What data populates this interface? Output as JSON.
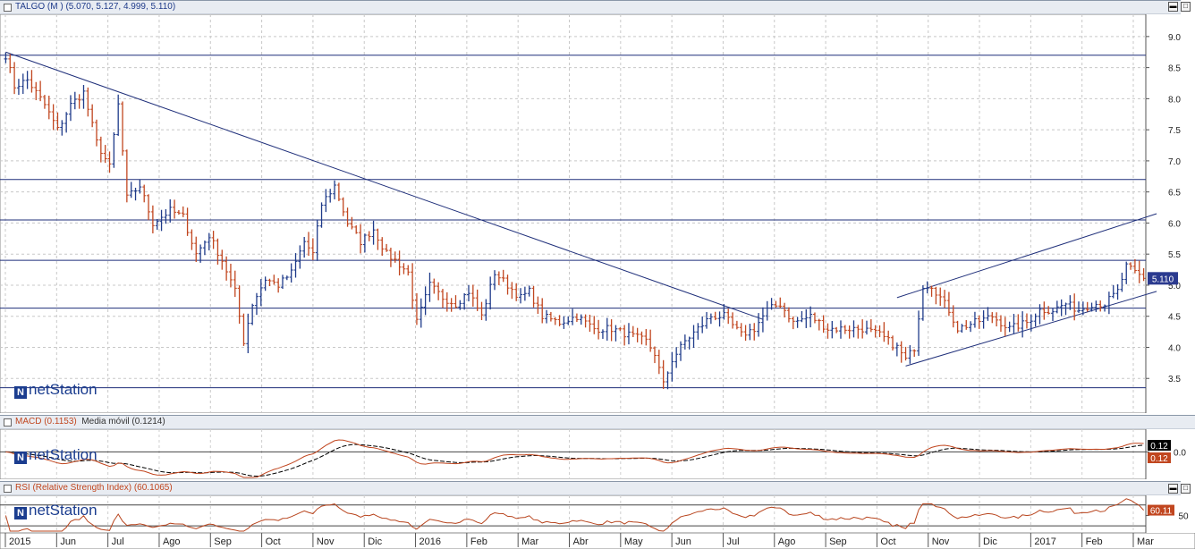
{
  "price_panel": {
    "header": "TALGO (M ) (5.070, 5.127, 4.999, 5.110)",
    "last_label": "5.110",
    "logo": "netStation"
  },
  "macd_panel": {
    "header_main": "MACD (0.1153)",
    "header_ma": "Media móvil (0.1214)",
    "label_macd": "0.12",
    "label_ma": "0.12",
    "logo": "netStation"
  },
  "rsi_panel": {
    "header": "RSI (Relative Strength Index) (60.1065)",
    "label": "60.11",
    "logo": "netStation"
  },
  "colors": {
    "up": "#1f3b8a",
    "down": "#c1461f",
    "line": "#1f2f7a",
    "macd": "#000000",
    "signal": "#c1461f",
    "rsi": "#b8441d"
  },
  "chart_data": [
    {
      "type": "ohlc",
      "series_name": "TALGO",
      "ylim": [
        3.0,
        9.3
      ],
      "y_ticks": [
        "3.5",
        "4.0",
        "4.5",
        "5.0",
        "5.5",
        "6.0",
        "6.5",
        "7.0",
        "7.5",
        "8.0",
        "8.5",
        "9.0"
      ],
      "x_ticks": [
        "2015",
        "Jun",
        "Jul",
        "Ago",
        "Sep",
        "Oct",
        "Nov",
        "Dic",
        "2016",
        "Feb",
        "Mar",
        "Abr",
        "May",
        "Jun",
        "Jul",
        "Ago",
        "Sep",
        "Oct",
        "Nov",
        "Dic",
        "2017",
        "Feb",
        "Mar"
      ],
      "close_path": [
        [
          0,
          8.7
        ],
        [
          2,
          8.2
        ],
        [
          5,
          8.3
        ],
        [
          9,
          7.9
        ],
        [
          12,
          7.5
        ],
        [
          15,
          7.9
        ],
        [
          18,
          8.1
        ],
        [
          21,
          7.3
        ],
        [
          24,
          6.9
        ],
        [
          26,
          7.9
        ],
        [
          28,
          6.4
        ],
        [
          31,
          6.6
        ],
        [
          34,
          6.0
        ],
        [
          38,
          6.2
        ],
        [
          41,
          6.1
        ],
        [
          44,
          5.5
        ],
        [
          47,
          5.8
        ],
        [
          50,
          5.4
        ],
        [
          53,
          4.9
        ],
        [
          55,
          4.1
        ],
        [
          57,
          4.7
        ],
        [
          60,
          5.1
        ],
        [
          63,
          5.0
        ],
        [
          66,
          5.2
        ],
        [
          69,
          5.7
        ],
        [
          71,
          5.5
        ],
        [
          73,
          6.3
        ],
        [
          76,
          6.6
        ],
        [
          79,
          6.0
        ],
        [
          82,
          5.7
        ],
        [
          85,
          5.9
        ],
        [
          88,
          5.5
        ],
        [
          90,
          5.4
        ],
        [
          93,
          5.2
        ],
        [
          95,
          4.4
        ],
        [
          98,
          5.0
        ],
        [
          101,
          4.8
        ],
        [
          104,
          4.7
        ],
        [
          107,
          4.9
        ],
        [
          110,
          4.5
        ],
        [
          113,
          5.2
        ],
        [
          116,
          5.0
        ],
        [
          119,
          4.8
        ],
        [
          121,
          4.9
        ],
        [
          124,
          4.5
        ],
        [
          128,
          4.4
        ],
        [
          132,
          4.5
        ],
        [
          136,
          4.3
        ],
        [
          140,
          4.3
        ],
        [
          144,
          4.2
        ],
        [
          148,
          4.1
        ],
        [
          150,
          3.9
        ],
        [
          152,
          3.4
        ],
        [
          154,
          3.8
        ],
        [
          157,
          4.1
        ],
        [
          160,
          4.3
        ],
        [
          163,
          4.5
        ],
        [
          166,
          4.5
        ],
        [
          170,
          4.2
        ],
        [
          173,
          4.3
        ],
        [
          176,
          4.6
        ],
        [
          179,
          4.7
        ],
        [
          182,
          4.4
        ],
        [
          186,
          4.5
        ],
        [
          190,
          4.3
        ],
        [
          194,
          4.3
        ],
        [
          198,
          4.3
        ],
        [
          202,
          4.2
        ],
        [
          206,
          4.0
        ],
        [
          208,
          3.8
        ],
        [
          210,
          4.0
        ],
        [
          212,
          5.0
        ],
        [
          214,
          5.0
        ],
        [
          216,
          4.8
        ],
        [
          218,
          4.6
        ],
        [
          220,
          4.3
        ],
        [
          224,
          4.4
        ],
        [
          228,
          4.5
        ],
        [
          232,
          4.3
        ],
        [
          236,
          4.4
        ],
        [
          239,
          4.6
        ],
        [
          242,
          4.6
        ],
        [
          245,
          4.7
        ],
        [
          248,
          4.6
        ],
        [
          251,
          4.7
        ],
        [
          254,
          4.7
        ],
        [
          257,
          4.9
        ],
        [
          259,
          5.3
        ],
        [
          261,
          5.2
        ],
        [
          263,
          5.11
        ]
      ],
      "n_bars": 264,
      "trendlines": [
        {
          "points": [
            [
              0,
              8.75
            ],
            [
              175,
              4.45
            ]
          ]
        },
        {
          "points": [
            [
              206,
              4.8
            ],
            [
              266,
              6.15
            ]
          ]
        },
        {
          "points": [
            [
              208,
              3.7
            ],
            [
              266,
              4.9
            ]
          ]
        }
      ],
      "horizontal_lines": [
        8.7,
        6.7,
        6.05,
        5.4,
        4.63,
        3.35
      ],
      "last_value": 5.11
    },
    {
      "type": "line",
      "series": [
        {
          "name": "MACD",
          "last": 0.1153
        },
        {
          "name": "Media móvil",
          "last": 0.1214
        }
      ],
      "ylim": [
        -0.55,
        0.45
      ],
      "y_ticks": [
        "0.0"
      ]
    },
    {
      "type": "line",
      "series": [
        {
          "name": "RSI",
          "last": 60.1065
        }
      ],
      "ylim": [
        20,
        85
      ],
      "y_ticks": [
        "50"
      ]
    }
  ]
}
